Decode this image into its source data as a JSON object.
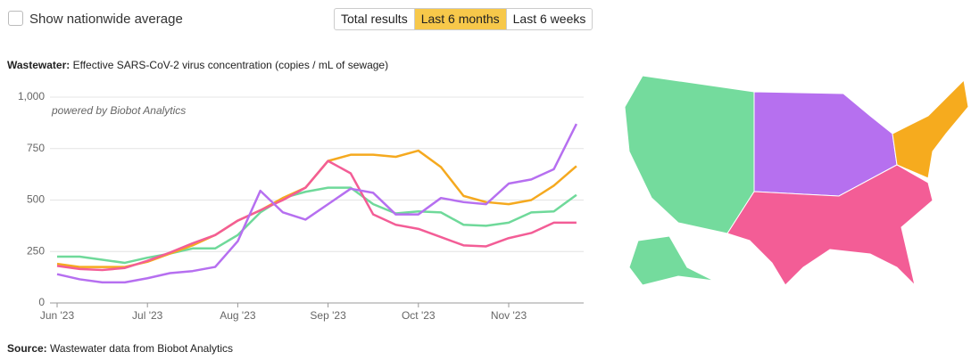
{
  "controls": {
    "checkbox_label": "Show nationwide average",
    "buttons": [
      "Total results",
      "Last 6 months",
      "Last 6 weeks"
    ]
  },
  "chart_data": {
    "type": "line",
    "title_prefix": "Wastewater:",
    "title": "Effective SARS-CoV-2 virus concentration (copies / mL of sewage)",
    "annotation": "powered by Biobot Analytics",
    "categories": [
      "Jun '23",
      null,
      null,
      null,
      "Jul '23",
      null,
      null,
      null,
      "Aug '23",
      null,
      null,
      null,
      "Sep '23",
      null,
      null,
      null,
      "Oct '23",
      null,
      null,
      null,
      "Nov '23",
      null,
      null,
      null
    ],
    "series": [
      {
        "color": "#6fd99a",
        "values": [
          225,
          225,
          210,
          195,
          220,
          240,
          265,
          265,
          330,
          440,
          510,
          540,
          560,
          560,
          480,
          435,
          445,
          440,
          380,
          375,
          390,
          440,
          445,
          525
        ]
      },
      {
        "color": "#f5a91f",
        "values": [
          190,
          175,
          175,
          175,
          200,
          240,
          280,
          330,
          400,
          450,
          510,
          560,
          690,
          720,
          720,
          710,
          740,
          660,
          520,
          490,
          480,
          500,
          570,
          665
        ]
      },
      {
        "color": "#f35d96",
        "values": [
          180,
          165,
          160,
          170,
          205,
          245,
          290,
          330,
          400,
          450,
          500,
          560,
          690,
          630,
          430,
          380,
          360,
          320,
          280,
          275,
          315,
          340,
          390,
          390
        ]
      },
      {
        "color": "#b66ff0",
        "values": [
          140,
          115,
          100,
          100,
          120,
          145,
          155,
          175,
          300,
          545,
          440,
          405,
          480,
          555,
          535,
          430,
          430,
          510,
          490,
          480,
          580,
          600,
          650,
          870
        ]
      }
    ],
    "ylim": [
      0,
      1000
    ],
    "yticks": [
      0,
      250,
      500,
      750,
      {
        "value": 1000,
        "label": "1,000"
      }
    ],
    "grid": true
  },
  "source": {
    "label": "Source:",
    "text": "Wastewater data from Biobot Analytics"
  }
}
